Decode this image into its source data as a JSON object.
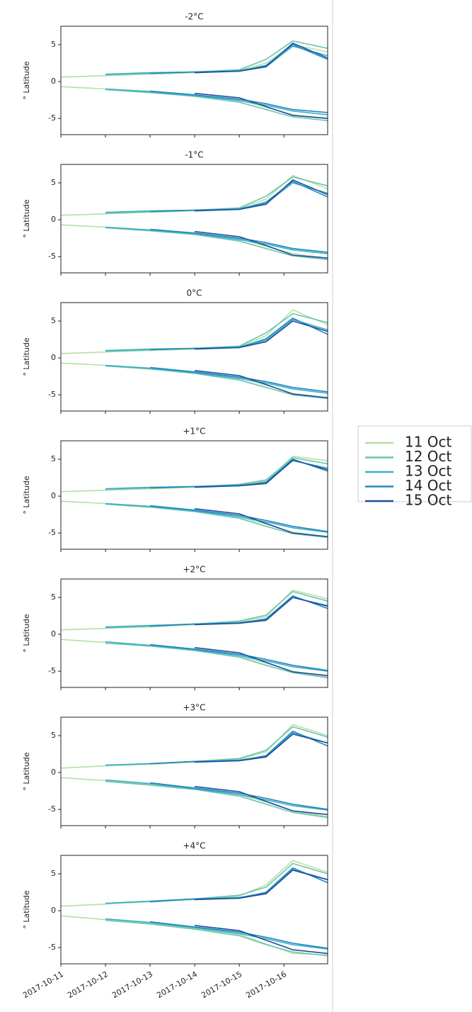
{
  "legend": [
    {
      "name": "11 Oct",
      "color": "#b5e0a6"
    },
    {
      "name": "12 Oct",
      "color": "#6cc4b0"
    },
    {
      "name": "13 Oct",
      "color": "#3aafc7"
    },
    {
      "name": "14 Oct",
      "color": "#2187c0"
    },
    {
      "name": "15 Oct",
      "color": "#1f4e9e"
    }
  ],
  "chart_data": [
    {
      "type": "contour",
      "title": "-2°C",
      "ylabel": "° Latitude",
      "xlim": [
        0,
        5.98
      ],
      "ylim": [
        -7.2,
        7.5
      ],
      "yticks": [
        -5,
        0,
        5
      ],
      "x": [
        0,
        1,
        2,
        3,
        4,
        4.6,
        5.2,
        5.98
      ],
      "series": [
        {
          "upper": [
            0.6,
            0.8,
            1.0,
            1.2,
            1.5,
            2.5,
            5.0,
            4.0
          ],
          "lower": [
            -0.7,
            -1.0,
            -1.3,
            -1.8,
            -2.5,
            -3.5,
            -4.5,
            -5.0
          ]
        },
        {
          "upper": [
            null,
            0.9,
            1.1,
            1.3,
            1.6,
            3.0,
            5.5,
            4.5
          ],
          "lower": [
            null,
            -1.1,
            -1.5,
            -2.0,
            -2.8,
            -3.8,
            -4.8,
            -5.3
          ]
        },
        {
          "upper": [
            null,
            1.0,
            1.2,
            1.3,
            1.5,
            2.0,
            4.8,
            3.5
          ],
          "lower": [
            null,
            -1.0,
            -1.4,
            -1.9,
            -2.6,
            -3.2,
            -4.0,
            -4.5
          ]
        },
        {
          "upper": [
            null,
            null,
            1.1,
            1.3,
            1.4,
            2.2,
            5.0,
            3.0
          ],
          "lower": [
            null,
            null,
            -1.3,
            -1.8,
            -2.4,
            -3.0,
            -3.8,
            -4.2
          ]
        },
        {
          "upper": [
            null,
            null,
            null,
            1.2,
            1.4,
            2.0,
            5.2,
            3.2
          ],
          "lower": [
            null,
            null,
            null,
            -1.6,
            -2.2,
            -3.4,
            -4.6,
            -5.0
          ]
        }
      ]
    },
    {
      "type": "contour",
      "title": "-1°C",
      "ylabel": "° Latitude",
      "xlim": [
        0,
        5.98
      ],
      "ylim": [
        -7.2,
        7.5
      ],
      "yticks": [
        -5,
        0,
        5
      ],
      "x": [
        0,
        1,
        2,
        3,
        4,
        4.6,
        5.2,
        5.98
      ],
      "series": [
        {
          "upper": [
            0.6,
            0.8,
            1.0,
            1.2,
            1.5,
            2.8,
            6.0,
            4.2
          ],
          "lower": [
            -0.7,
            -1.0,
            -1.4,
            -1.9,
            -2.6,
            -3.6,
            -4.6,
            -5.2
          ]
        },
        {
          "upper": [
            null,
            0.9,
            1.1,
            1.3,
            1.6,
            3.2,
            5.8,
            4.6
          ],
          "lower": [
            null,
            -1.1,
            -1.5,
            -2.0,
            -2.9,
            -3.9,
            -4.9,
            -5.4
          ]
        },
        {
          "upper": [
            null,
            1.0,
            1.2,
            1.3,
            1.5,
            2.2,
            5.0,
            3.6
          ],
          "lower": [
            null,
            -1.0,
            -1.4,
            -1.9,
            -2.7,
            -3.3,
            -4.1,
            -4.6
          ]
        },
        {
          "upper": [
            null,
            null,
            1.1,
            1.3,
            1.4,
            2.4,
            5.2,
            3.1
          ],
          "lower": [
            null,
            null,
            -1.3,
            -1.8,
            -2.5,
            -3.1,
            -3.9,
            -4.4
          ]
        },
        {
          "upper": [
            null,
            null,
            null,
            1.2,
            1.4,
            2.1,
            5.4,
            3.4
          ],
          "lower": [
            null,
            null,
            null,
            -1.6,
            -2.3,
            -3.5,
            -4.8,
            -5.2
          ]
        }
      ]
    },
    {
      "type": "contour",
      "title": "0°C",
      "ylabel": "° Latitude",
      "xlim": [
        0,
        5.98
      ],
      "ylim": [
        -7.2,
        7.5
      ],
      "yticks": [
        -5,
        0,
        5
      ],
      "x": [
        0,
        1,
        2,
        3,
        4,
        4.6,
        5.2,
        5.98
      ],
      "series": [
        {
          "upper": [
            0.6,
            0.8,
            1.0,
            1.2,
            1.5,
            3.0,
            6.5,
            4.5
          ],
          "lower": [
            -0.7,
            -1.0,
            -1.4,
            -2.0,
            -2.7,
            -3.7,
            -4.8,
            -5.4
          ]
        },
        {
          "upper": [
            null,
            0.9,
            1.1,
            1.3,
            1.6,
            3.4,
            6.0,
            4.8
          ],
          "lower": [
            null,
            -1.1,
            -1.5,
            -2.1,
            -3.0,
            -4.0,
            -5.0,
            -5.5
          ]
        },
        {
          "upper": [
            null,
            1.0,
            1.2,
            1.3,
            1.5,
            2.4,
            5.2,
            3.8
          ],
          "lower": [
            null,
            -1.0,
            -1.4,
            -2.0,
            -2.8,
            -3.4,
            -4.2,
            -4.8
          ]
        },
        {
          "upper": [
            null,
            null,
            1.1,
            1.3,
            1.4,
            2.6,
            5.4,
            3.2
          ],
          "lower": [
            null,
            null,
            -1.3,
            -1.9,
            -2.6,
            -3.2,
            -4.0,
            -4.6
          ]
        },
        {
          "upper": [
            null,
            null,
            null,
            1.2,
            1.4,
            2.2,
            5.0,
            3.6
          ],
          "lower": [
            null,
            null,
            null,
            -1.7,
            -2.4,
            -3.6,
            -4.9,
            -5.4
          ]
        }
      ]
    },
    {
      "type": "contour",
      "title": "+1°C",
      "ylabel": "° Latitude",
      "xlim": [
        0,
        5.98
      ],
      "ylim": [
        -7.2,
        7.5
      ],
      "yticks": [
        -5,
        0,
        5
      ],
      "x": [
        0,
        1,
        2,
        3,
        4,
        4.6,
        5.2,
        5.98
      ],
      "series": [
        {
          "upper": [
            0.6,
            0.8,
            1.0,
            1.2,
            1.6,
            2.0,
            5.4,
            4.8
          ],
          "lower": [
            -0.7,
            -1.0,
            -1.4,
            -2.0,
            -2.8,
            -3.8,
            -4.9,
            -5.5
          ]
        },
        {
          "upper": [
            null,
            0.9,
            1.1,
            1.3,
            1.6,
            2.2,
            5.2,
            4.4
          ],
          "lower": [
            null,
            -1.1,
            -1.5,
            -2.1,
            -3.0,
            -4.1,
            -5.1,
            -5.6
          ]
        },
        {
          "upper": [
            null,
            1.0,
            1.2,
            1.3,
            1.5,
            1.8,
            4.8,
            3.8
          ],
          "lower": [
            null,
            -1.0,
            -1.4,
            -2.0,
            -2.8,
            -3.5,
            -4.3,
            -4.9
          ]
        },
        {
          "upper": [
            null,
            null,
            1.1,
            1.3,
            1.4,
            1.9,
            5.0,
            3.4
          ],
          "lower": [
            null,
            null,
            -1.3,
            -1.9,
            -2.6,
            -3.3,
            -4.1,
            -4.8
          ]
        },
        {
          "upper": [
            null,
            null,
            null,
            1.2,
            1.4,
            1.7,
            4.9,
            3.6
          ],
          "lower": [
            null,
            null,
            null,
            -1.7,
            -2.4,
            -3.7,
            -5.0,
            -5.5
          ]
        }
      ]
    },
    {
      "type": "contour",
      "title": "+2°C",
      "ylabel": "° Latitude",
      "xlim": [
        0,
        5.98
      ],
      "ylim": [
        -7.2,
        7.5
      ],
      "yticks": [
        -5,
        0,
        5
      ],
      "x": [
        0,
        1,
        2,
        3,
        4,
        4.6,
        5.2,
        5.98
      ],
      "series": [
        {
          "upper": [
            0.6,
            0.8,
            1.0,
            1.3,
            1.7,
            2.4,
            6.0,
            4.8
          ],
          "lower": [
            -0.7,
            -1.1,
            -1.5,
            -2.1,
            -2.9,
            -3.9,
            -5.0,
            -5.8
          ]
        },
        {
          "upper": [
            null,
            0.9,
            1.1,
            1.4,
            1.8,
            2.6,
            5.8,
            4.5
          ],
          "lower": [
            null,
            -1.2,
            -1.6,
            -2.2,
            -3.1,
            -4.2,
            -5.2,
            -5.9
          ]
        },
        {
          "upper": [
            null,
            1.0,
            1.2,
            1.4,
            1.6,
            2.0,
            5.0,
            3.9
          ],
          "lower": [
            null,
            -1.0,
            -1.5,
            -2.1,
            -2.9,
            -3.6,
            -4.4,
            -5.0
          ]
        },
        {
          "upper": [
            null,
            null,
            1.1,
            1.4,
            1.5,
            2.1,
            5.2,
            3.5
          ],
          "lower": [
            null,
            null,
            -1.4,
            -2.0,
            -2.7,
            -3.4,
            -4.2,
            -4.9
          ]
        },
        {
          "upper": [
            null,
            null,
            null,
            1.3,
            1.5,
            1.9,
            5.0,
            3.8
          ],
          "lower": [
            null,
            null,
            null,
            -1.8,
            -2.5,
            -3.8,
            -5.1,
            -5.6
          ]
        }
      ]
    },
    {
      "type": "contour",
      "title": "+3°C",
      "ylabel": "° Latitude",
      "xlim": [
        0,
        5.98
      ],
      "ylim": [
        -7.2,
        7.5
      ],
      "yticks": [
        -5,
        0,
        5
      ],
      "x": [
        0,
        1,
        2,
        3,
        4,
        4.6,
        5.2,
        5.98
      ],
      "series": [
        {
          "upper": [
            0.6,
            0.9,
            1.1,
            1.4,
            1.8,
            2.8,
            6.5,
            5.0
          ],
          "lower": [
            -0.7,
            -1.1,
            -1.6,
            -2.2,
            -3.0,
            -4.0,
            -5.2,
            -6.0
          ]
        },
        {
          "upper": [
            null,
            1.0,
            1.2,
            1.5,
            1.9,
            3.0,
            6.2,
            4.8
          ],
          "lower": [
            null,
            -1.2,
            -1.7,
            -2.3,
            -3.2,
            -4.3,
            -5.4,
            -6.1
          ]
        },
        {
          "upper": [
            null,
            1.0,
            1.2,
            1.5,
            1.7,
            2.2,
            5.4,
            4.0
          ],
          "lower": [
            null,
            -1.0,
            -1.5,
            -2.2,
            -3.0,
            -3.7,
            -4.5,
            -5.1
          ]
        },
        {
          "upper": [
            null,
            null,
            1.2,
            1.5,
            1.6,
            2.3,
            5.6,
            3.6
          ],
          "lower": [
            null,
            null,
            -1.4,
            -2.1,
            -2.8,
            -3.5,
            -4.3,
            -5.0
          ]
        },
        {
          "upper": [
            null,
            null,
            null,
            1.4,
            1.6,
            2.1,
            5.2,
            4.0
          ],
          "lower": [
            null,
            null,
            null,
            -1.9,
            -2.6,
            -3.9,
            -5.2,
            -5.7
          ]
        }
      ]
    },
    {
      "type": "contour",
      "title": "+4°C",
      "ylabel": "° Latitude",
      "xlim": [
        0,
        5.98
      ],
      "ylim": [
        -7.2,
        7.5
      ],
      "yticks": [
        -5,
        0,
        5
      ],
      "xticks": [
        {
          "value": 0,
          "label": "2017-10-11"
        },
        {
          "value": 1,
          "label": "2017-10-12"
        },
        {
          "value": 2,
          "label": "2017-10-13"
        },
        {
          "value": 3,
          "label": "2017-10-14"
        },
        {
          "value": 4,
          "label": "2017-10-15"
        },
        {
          "value": 5,
          "label": "2017-10-16"
        }
      ],
      "x": [
        0,
        1,
        2,
        3,
        4,
        4.6,
        5.2,
        5.98
      ],
      "series": [
        {
          "upper": [
            0.6,
            0.9,
            1.2,
            1.5,
            2.0,
            3.5,
            6.8,
            5.2
          ],
          "lower": [
            -0.7,
            -1.2,
            -1.7,
            -2.4,
            -3.2,
            -4.5,
            -5.8,
            -6.0
          ]
        },
        {
          "upper": [
            null,
            1.0,
            1.3,
            1.6,
            2.1,
            3.2,
            6.4,
            5.0
          ],
          "lower": [
            null,
            -1.3,
            -1.8,
            -2.5,
            -3.4,
            -4.6,
            -5.6,
            -6.1
          ]
        },
        {
          "upper": [
            null,
            1.0,
            1.3,
            1.6,
            1.8,
            2.4,
            5.6,
            4.2
          ],
          "lower": [
            null,
            -1.1,
            -1.6,
            -2.3,
            -3.1,
            -3.8,
            -4.6,
            -5.2
          ]
        },
        {
          "upper": [
            null,
            null,
            1.2,
            1.6,
            1.7,
            2.5,
            5.8,
            3.8
          ],
          "lower": [
            null,
            null,
            -1.5,
            -2.2,
            -2.9,
            -3.6,
            -4.4,
            -5.1
          ]
        },
        {
          "upper": [
            null,
            null,
            null,
            1.5,
            1.7,
            2.3,
            5.5,
            4.2
          ],
          "lower": [
            null,
            null,
            null,
            -2.0,
            -2.7,
            -4.0,
            -5.3,
            -5.8
          ]
        }
      ]
    }
  ]
}
